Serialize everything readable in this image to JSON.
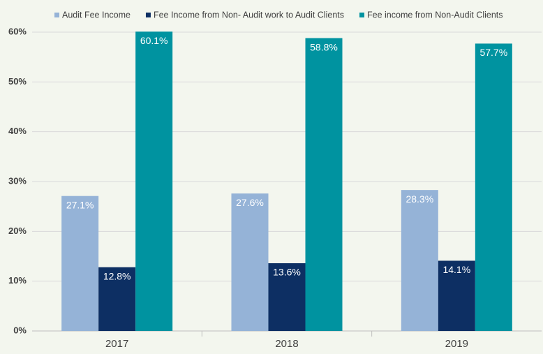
{
  "chart_data": {
    "type": "bar",
    "categories": [
      "2017",
      "2018",
      "2019"
    ],
    "series": [
      {
        "name": "Audit Fee Income",
        "color": "#95b3d7",
        "values": [
          27.1,
          27.6,
          28.3
        ],
        "value_labels": [
          "27.1%",
          "27.6%",
          "28.3%"
        ]
      },
      {
        "name": "Fee Income from Non- Audit work to Audit Clients",
        "color": "#0d2f63",
        "values": [
          12.8,
          13.6,
          14.1
        ],
        "value_labels": [
          "12.8%",
          "13.6%",
          "14.1%"
        ]
      },
      {
        "name": "Fee income from Non-Audit Clients",
        "color": "#0093a0",
        "values": [
          60.1,
          58.8,
          57.7
        ],
        "value_labels": [
          "60.1%",
          "58.8%",
          "57.7%"
        ]
      }
    ],
    "ylim": [
      0,
      61
    ],
    "yticks": [
      {
        "value": 0,
        "label": "0%"
      },
      {
        "value": 10,
        "label": "10%"
      },
      {
        "value": 20,
        "label": "20%"
      },
      {
        "value": 30,
        "label": "30%"
      },
      {
        "value": 40,
        "label": "40%"
      },
      {
        "value": 50,
        "label": "50%"
      },
      {
        "value": 60,
        "label": "60%"
      }
    ],
    "grid": true,
    "legend": "top"
  }
}
